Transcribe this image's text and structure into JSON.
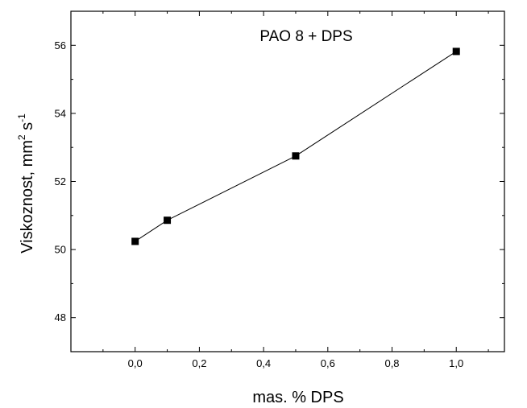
{
  "chart_data": {
    "type": "line",
    "title": "",
    "xlabel": "mas. % DPS",
    "ylabel_main": "Viskoznost, mm",
    "ylabel_sup1": "2",
    "ylabel_mid": " s",
    "ylabel_sup2": "-1",
    "annotation": "PAO 8 + DPS",
    "xlim": [
      -0.2,
      1.15
    ],
    "ylim": [
      47.0,
      57.0
    ],
    "x_ticks": [
      0.0,
      0.2,
      0.4,
      0.6,
      0.8,
      1.0
    ],
    "x_tick_labels": [
      "0,0",
      "0,2",
      "0,4",
      "0,6",
      "0,8",
      "1,0"
    ],
    "y_ticks": [
      48,
      50,
      52,
      54,
      56
    ],
    "y_tick_labels": [
      "48",
      "50",
      "52",
      "54",
      "56"
    ],
    "grid": false,
    "series": [
      {
        "x": [
          0.0,
          0.1,
          0.5,
          1.0
        ],
        "y": [
          50.24,
          50.86,
          52.75,
          55.82
        ],
        "marker": "square",
        "color": "#000000"
      }
    ]
  }
}
